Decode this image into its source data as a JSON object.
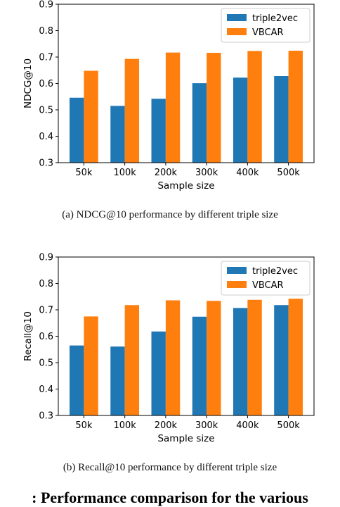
{
  "chart_data": [
    {
      "type": "bar",
      "categories": [
        "50k",
        "100k",
        "200k",
        "300k",
        "400k",
        "500k"
      ],
      "series": [
        {
          "name": "triple2vec",
          "values": [
            0.546,
            0.515,
            0.542,
            0.601,
            0.622,
            0.628
          ]
        },
        {
          "name": "VBCAR",
          "values": [
            0.648,
            0.693,
            0.717,
            0.716,
            0.723,
            0.724
          ]
        }
      ],
      "xlabel": "Sample size",
      "ylabel": "NDCG@10",
      "ylim": [
        0.3,
        0.9
      ],
      "yticks": [
        "0.3",
        "0.4",
        "0.5",
        "0.6",
        "0.7",
        "0.8",
        "0.9"
      ],
      "legend": "top-right",
      "grid": false,
      "caption": "(a)  NDCG@10 performance by different triple size"
    },
    {
      "type": "bar",
      "categories": [
        "50k",
        "100k",
        "200k",
        "300k",
        "400k",
        "500k"
      ],
      "series": [
        {
          "name": "triple2vec",
          "values": [
            0.565,
            0.561,
            0.618,
            0.674,
            0.707,
            0.718
          ]
        },
        {
          "name": "VBCAR",
          "values": [
            0.675,
            0.718,
            0.736,
            0.734,
            0.738,
            0.742
          ]
        }
      ],
      "xlabel": "Sample size",
      "ylabel": "Recall@10",
      "ylim": [
        0.3,
        0.9
      ],
      "yticks": [
        "0.3",
        "0.4",
        "0.5",
        "0.6",
        "0.7",
        "0.8",
        "0.9"
      ],
      "legend": "top-right",
      "grid": false,
      "caption": "(b)  Recall@10 performance by different triple size"
    }
  ],
  "colors": {
    "triple2vec": "#1f77b4",
    "VBCAR": "#ff7f0e",
    "axis": "#000000"
  },
  "figure_title_partial": ": Performance comparison for the various"
}
